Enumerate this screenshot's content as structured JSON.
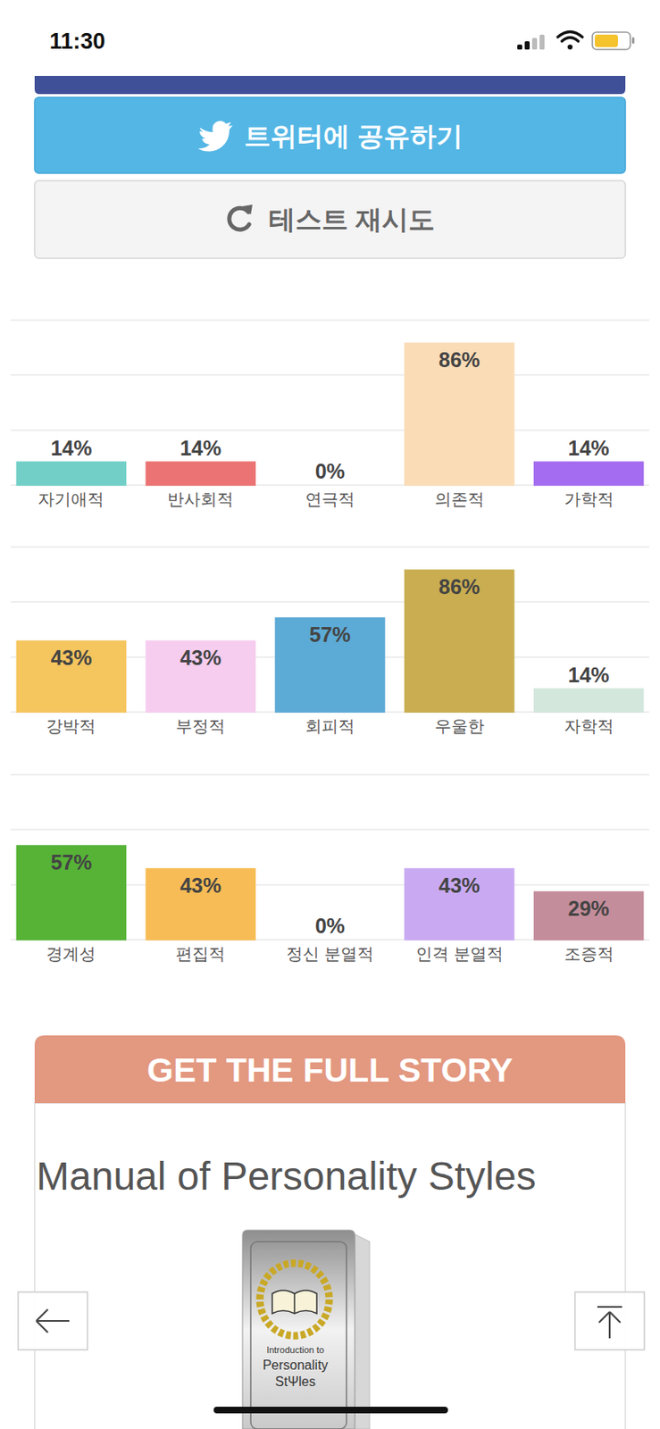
{
  "status_bar": {
    "time": "11:30"
  },
  "buttons": {
    "twitter": "트위터에 공유하기",
    "retry": "테스트 재시도"
  },
  "chart_data": [
    {
      "type": "bar",
      "categories": [
        "자기애적",
        "반사회적",
        "연극적",
        "의존적",
        "가학적"
      ],
      "values": [
        14,
        14,
        0,
        86,
        14
      ],
      "value_labels": [
        "14%",
        "14%",
        "0%",
        "86%",
        "14%"
      ],
      "colors": [
        "#72cfc7",
        "#ec7373",
        "#a3df9c",
        "#fadcb6",
        "#a46cf0"
      ],
      "ylim": [
        0,
        100
      ],
      "yticks": [
        0,
        33.3,
        66.7,
        100
      ],
      "grid": true,
      "data_labels": true,
      "tick_labels": "x"
    },
    {
      "type": "bar",
      "categories": [
        "강박적",
        "부정적",
        "회피적",
        "우울한",
        "자학적"
      ],
      "values": [
        43,
        43,
        57,
        86,
        14
      ],
      "value_labels": [
        "43%",
        "43%",
        "57%",
        "86%",
        "14%"
      ],
      "colors": [
        "#f5c55e",
        "#f6cdef",
        "#5caad6",
        "#c9ad50",
        "#d3e7dc"
      ],
      "ylim": [
        0,
        100
      ],
      "yticks": [
        0,
        33.3,
        66.7,
        100
      ],
      "grid": true,
      "data_labels": true,
      "tick_labels": "x"
    },
    {
      "type": "bar",
      "categories": [
        "경계성",
        "편집적",
        "정신 분열적",
        "인격 분열적",
        "조증적"
      ],
      "values": [
        57,
        43,
        0,
        43,
        29
      ],
      "value_labels": [
        "57%",
        "43%",
        "0%",
        "43%",
        "29%"
      ],
      "colors": [
        "#56b336",
        "#f7bc55",
        "#ea7a6a",
        "#c9aaf2",
        "#c48d9b"
      ],
      "ylim": [
        0,
        100
      ],
      "yticks": [
        0,
        33.3,
        66.7,
        100
      ],
      "grid": true,
      "data_labels": true,
      "tick_labels": "x"
    }
  ],
  "promo": {
    "header": "GET THE FULL STORY",
    "title": "Manual of Personality Styles",
    "book_cover": [
      "Introduction to",
      "Personality",
      "StΨles"
    ]
  }
}
